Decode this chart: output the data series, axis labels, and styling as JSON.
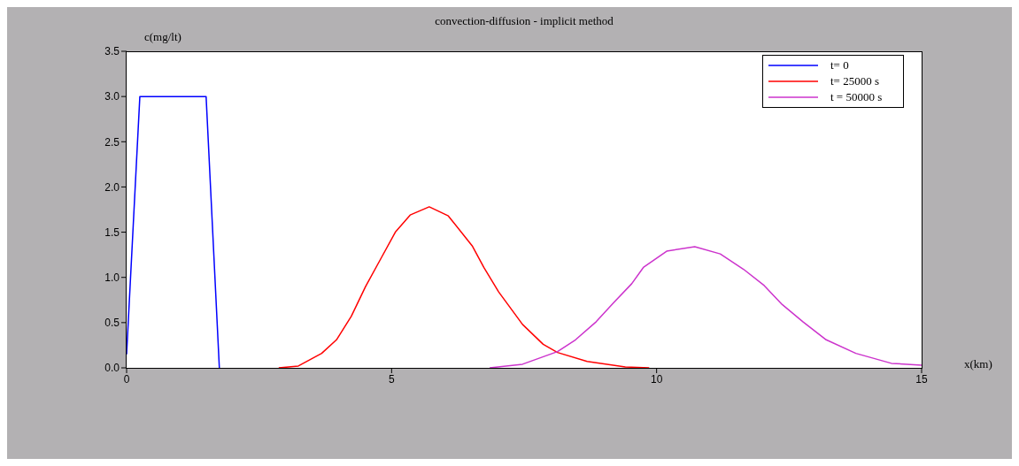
{
  "chart_data": {
    "type": "line",
    "title": "convection-diffusion - implicit method",
    "xlabel": "x(km)",
    "ylabel": "c(mg/lt)",
    "xlim": [
      0,
      15
    ],
    "xticks": [
      0,
      5,
      10,
      15
    ],
    "ylim": [
      0,
      3.5
    ],
    "yticks": [
      {
        "value": 0,
        "label": "0.0"
      },
      {
        "value": 0.5,
        "label": "0.5"
      },
      {
        "value": 1,
        "label": "1.0"
      },
      {
        "value": 1.5,
        "label": "1.5"
      },
      {
        "value": 2,
        "label": "2.0"
      },
      {
        "value": 2.5,
        "label": "2.5"
      },
      {
        "value": 3,
        "label": "3.0"
      },
      {
        "value": 3.5,
        "label": "3.5"
      }
    ],
    "legend": "top right",
    "grid": false,
    "marker": "none",
    "line_style": "solid",
    "series": [
      {
        "name": "t= 0",
        "color": "#0000ff",
        "x": [
          0,
          0.25,
          1.5,
          1.75
        ],
        "values": [
          0.15,
          3,
          3,
          0
        ]
      },
      {
        "name": "t= 25000 s",
        "color": "#ff0000",
        "x": [
          2.87,
          3.24,
          3.68,
          3.96,
          4.24,
          4.51,
          4.79,
          5.07,
          5.35,
          5.71,
          6.07,
          6.52,
          6.74,
          7.02,
          7.47,
          7.86,
          8.13,
          8.69,
          9.41,
          9.86
        ],
        "values": [
          0,
          0.02,
          0.16,
          0.31,
          0.57,
          0.9,
          1.2,
          1.5,
          1.69,
          1.78,
          1.68,
          1.35,
          1.11,
          0.84,
          0.48,
          0.26,
          0.17,
          0.07,
          0.01,
          0
        ]
      },
      {
        "name": "t = 50000 s",
        "color": "#cc33cc",
        "x": [
          6.85,
          7.47,
          8.13,
          8.47,
          8.86,
          9.19,
          9.53,
          9.75,
          10.19,
          10.72,
          11.2,
          11.64,
          12.03,
          12.37,
          12.76,
          13.2,
          13.76,
          14.43,
          15
        ],
        "values": [
          0,
          0.04,
          0.18,
          0.31,
          0.51,
          0.72,
          0.93,
          1.11,
          1.29,
          1.34,
          1.26,
          1.09,
          0.91,
          0.7,
          0.51,
          0.31,
          0.16,
          0.05,
          0.03
        ]
      }
    ]
  }
}
